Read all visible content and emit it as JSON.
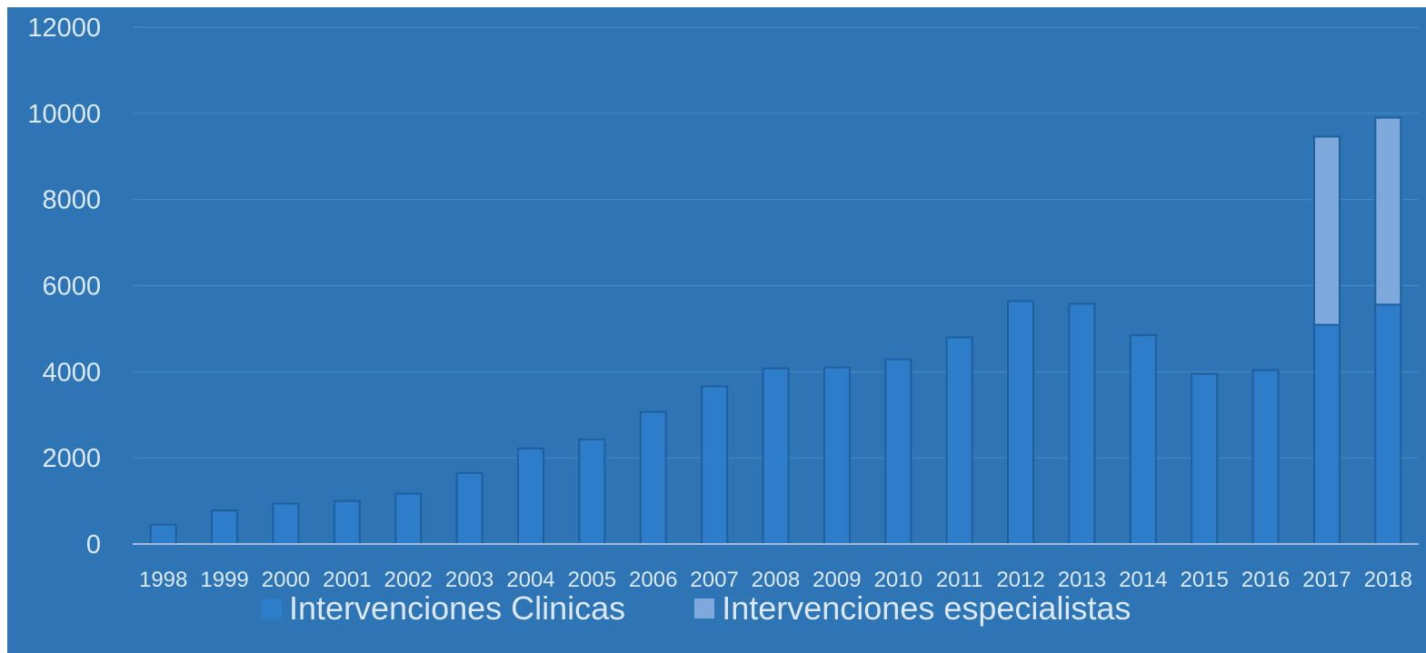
{
  "chart_data": {
    "type": "bar",
    "stacked": true,
    "categories": [
      "1998",
      "1999",
      "2000",
      "2001",
      "2002",
      "2003",
      "2004",
      "2005",
      "2006",
      "2007",
      "2008",
      "2009",
      "2010",
      "2011",
      "2012",
      "2013",
      "2014",
      "2015",
      "2016",
      "2017",
      "2018"
    ],
    "series": [
      {
        "name": "Intervenciones Clinicas",
        "color": "#2e7dcb",
        "values": [
          450,
          780,
          940,
          1000,
          1170,
          1650,
          2220,
          2430,
          3070,
          3660,
          4080,
          4100,
          4290,
          4800,
          5640,
          5580,
          4850,
          3950,
          4040,
          5090,
          5560
        ]
      },
      {
        "name": "Intervenciones especialistas",
        "color": "#7ea9dd",
        "values": [
          0,
          0,
          0,
          0,
          0,
          0,
          0,
          0,
          0,
          0,
          0,
          0,
          0,
          0,
          0,
          0,
          0,
          0,
          0,
          4370,
          4340
        ]
      }
    ],
    "ylim": [
      0,
      12000
    ],
    "yticks": [
      "0",
      "2000",
      "4000",
      "6000",
      "8000",
      "10000",
      "12000"
    ],
    "grid": true,
    "legend_position": "bottom",
    "background": "#2e75b6",
    "text_color": "#dce8f5"
  }
}
